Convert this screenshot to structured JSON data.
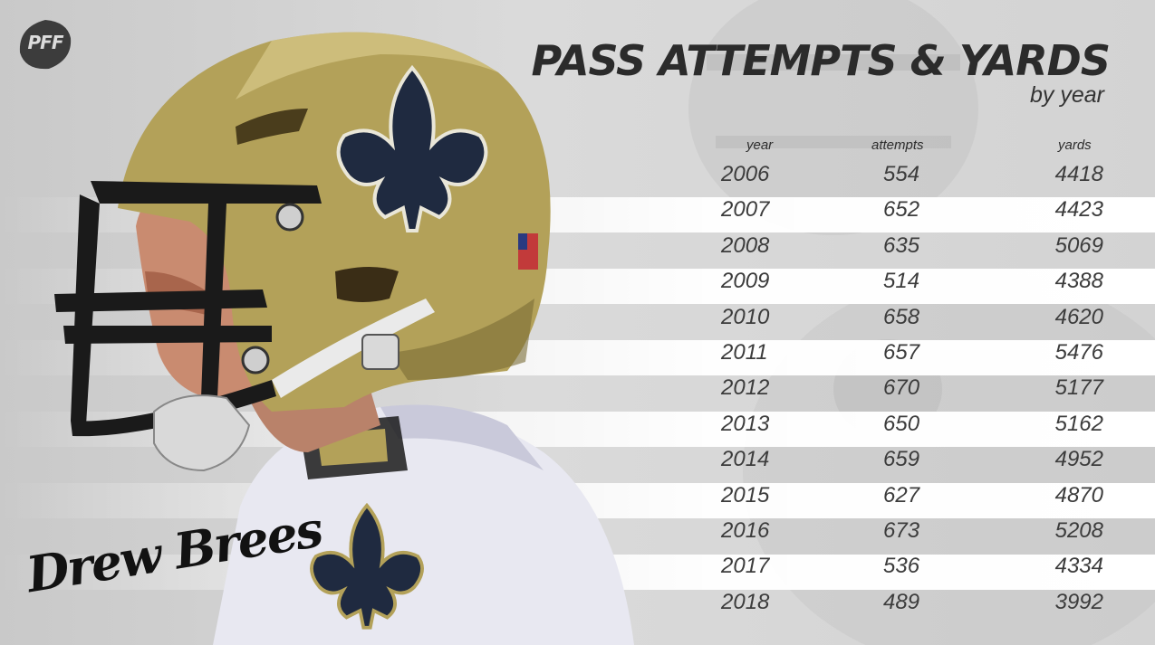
{
  "brand": {
    "logo_text": "PFF"
  },
  "chart_data": {
    "type": "table",
    "title": "PASS ATTEMPTS & YARDS",
    "subtitle": "by year",
    "columns": [
      "year",
      "attempts",
      "yards"
    ],
    "rows": [
      {
        "year": "2006",
        "attempts": 554,
        "yards": 4418
      },
      {
        "year": "2007",
        "attempts": 652,
        "yards": 4423
      },
      {
        "year": "2008",
        "attempts": 635,
        "yards": 5069
      },
      {
        "year": "2009",
        "attempts": 514,
        "yards": 4388
      },
      {
        "year": "2010",
        "attempts": 658,
        "yards": 4620
      },
      {
        "year": "2011",
        "attempts": 657,
        "yards": 5476
      },
      {
        "year": "2012",
        "attempts": 670,
        "yards": 5177
      },
      {
        "year": "2013",
        "attempts": 650,
        "yards": 5162
      },
      {
        "year": "2014",
        "attempts": 659,
        "yards": 4952
      },
      {
        "year": "2015",
        "attempts": 627,
        "yards": 4870
      },
      {
        "year": "2016",
        "attempts": 673,
        "yards": 5208
      },
      {
        "year": "2017",
        "attempts": 536,
        "yards": 4334
      },
      {
        "year": "2018",
        "attempts": 489,
        "yards": 3992
      }
    ]
  },
  "signature_text": "Drew Brees",
  "colors": {
    "helmet_gold": "#b3a159",
    "helmet_shadow": "#7a6c36",
    "jersey_white": "#e9e9f2",
    "navy_logo": "#1f2a40"
  }
}
